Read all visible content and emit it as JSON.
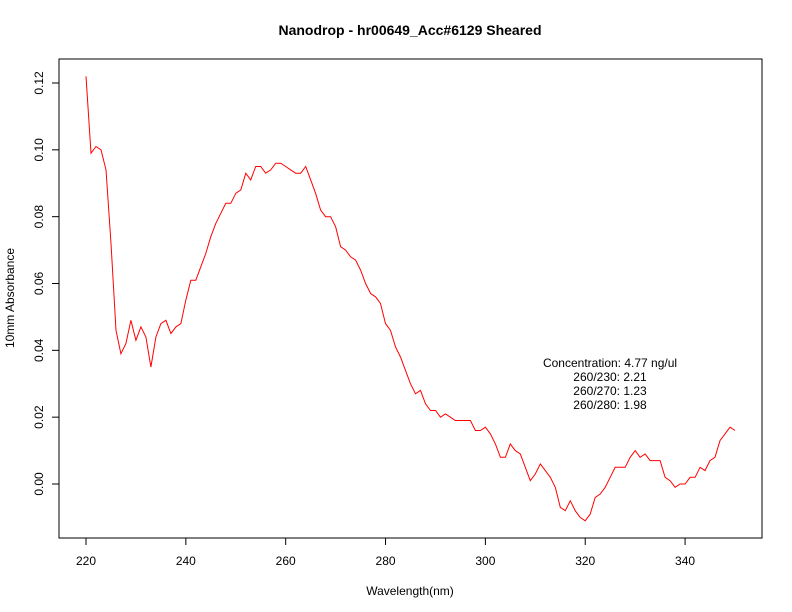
{
  "chart_data": {
    "type": "line",
    "title": "Nanodrop - hr00649_Acc#6129 Sheared",
    "xlabel": "Wavelength(nm)",
    "ylabel": "10mm Absorbance",
    "xlim": [
      220,
      350
    ],
    "ylim": [
      -0.015,
      0.125
    ],
    "x_ticks": [
      220,
      240,
      260,
      280,
      300,
      320,
      340
    ],
    "x_tick_labels": [
      "220",
      "240",
      "260",
      "280",
      "300",
      "320",
      "340"
    ],
    "y_ticks": [
      0.0,
      0.02,
      0.04,
      0.06,
      0.08,
      0.1,
      0.12
    ],
    "y_tick_labels": [
      "0.00",
      "0.02",
      "0.04",
      "0.06",
      "0.08",
      "0.10",
      "0.12"
    ],
    "grid": false,
    "series_color": "#ff0000",
    "series": [
      {
        "x": [
          220,
          221,
          222,
          223,
          224,
          225,
          226,
          227,
          228,
          229,
          230,
          231,
          232,
          233,
          234,
          235,
          236,
          237,
          238,
          239,
          240,
          241,
          242,
          243,
          244,
          245,
          246,
          247,
          248,
          249,
          250,
          251,
          252,
          253,
          254,
          255,
          256,
          257,
          258,
          259,
          260,
          261,
          262,
          263,
          264,
          265,
          266,
          267,
          268,
          269,
          270,
          271,
          272,
          273,
          274,
          275,
          276,
          277,
          278,
          279,
          280,
          281,
          282,
          283,
          284,
          285,
          286,
          287,
          288,
          289,
          290,
          291,
          292,
          293,
          294,
          295,
          296,
          297,
          298,
          299,
          300,
          301,
          302,
          303,
          304,
          305,
          306,
          307,
          308,
          309,
          310,
          311,
          312,
          313,
          314,
          315,
          316,
          317,
          318,
          319,
          320,
          321,
          322,
          323,
          324,
          325,
          326,
          327,
          328,
          329,
          330,
          331,
          332,
          333,
          334,
          335,
          336,
          337,
          338,
          339,
          340,
          341,
          342,
          343,
          344,
          345,
          346,
          347,
          348,
          349,
          350
        ],
        "values": [
          0.122,
          0.099,
          0.101,
          0.1,
          0.094,
          0.072,
          0.046,
          0.039,
          0.042,
          0.049,
          0.043,
          0.047,
          0.044,
          0.035,
          0.044,
          0.048,
          0.049,
          0.045,
          0.047,
          0.048,
          0.055,
          0.061,
          0.061,
          0.065,
          0.069,
          0.074,
          0.078,
          0.081,
          0.084,
          0.084,
          0.087,
          0.088,
          0.093,
          0.091,
          0.095,
          0.095,
          0.093,
          0.094,
          0.096,
          0.096,
          0.095,
          0.094,
          0.093,
          0.093,
          0.095,
          0.091,
          0.087,
          0.082,
          0.08,
          0.08,
          0.077,
          0.071,
          0.07,
          0.068,
          0.067,
          0.064,
          0.06,
          0.057,
          0.056,
          0.054,
          0.048,
          0.046,
          0.041,
          0.038,
          0.034,
          0.03,
          0.027,
          0.028,
          0.024,
          0.022,
          0.022,
          0.02,
          0.021,
          0.02,
          0.019,
          0.019,
          0.019,
          0.019,
          0.016,
          0.016,
          0.017,
          0.015,
          0.012,
          0.008,
          0.008,
          0.012,
          0.01,
          0.009,
          0.005,
          0.001,
          0.003,
          0.006,
          0.004,
          0.002,
          -0.001,
          -0.007,
          -0.008,
          -0.005,
          -0.008,
          -0.01,
          -0.011,
          -0.009,
          -0.004,
          -0.003,
          -0.001,
          0.002,
          0.005,
          0.005,
          0.005,
          0.008,
          0.01,
          0.008,
          0.009,
          0.007,
          0.007,
          0.007,
          0.002,
          0.001,
          -0.001,
          0.0,
          0.0,
          0.002,
          0.002,
          0.005,
          0.004,
          0.007,
          0.008,
          0.013,
          0.015,
          0.017,
          0.016
        ]
      }
    ]
  },
  "annotation": {
    "concentration": "Concentration: 4.77 ng/ul",
    "ratio_230": "260/230: 2.21",
    "ratio_270": "260/270: 1.23",
    "ratio_280": "260/280: 1.98"
  }
}
